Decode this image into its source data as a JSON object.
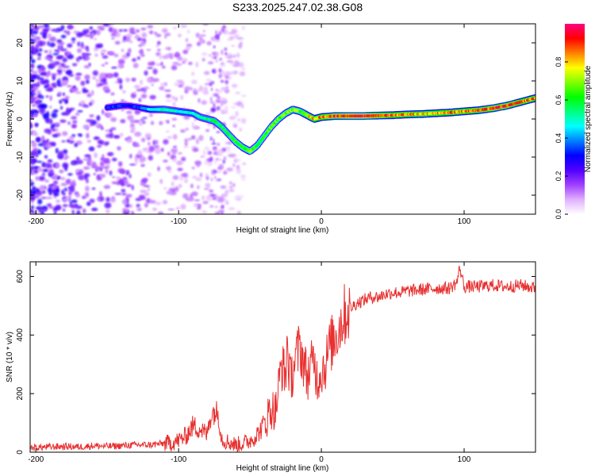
{
  "title": "S233.2025.247.02.38.G08",
  "chart_data": [
    {
      "type": "heatmap",
      "xlabel": "Height of straight line (km)",
      "ylabel": "Frequency (Hz)",
      "xlim": [
        -204,
        150
      ],
      "ylim": [
        -25,
        25
      ],
      "xticks": [
        -200,
        -100,
        0,
        100
      ],
      "yticks": [
        -20,
        -10,
        0,
        10,
        20
      ],
      "colorbar": {
        "label": "Normalized spectral amplitude",
        "range": [
          0,
          1
        ],
        "ticks": [
          0.0,
          0.2,
          0.4,
          0.6,
          0.8
        ],
        "colors": [
          "#ffffff",
          "#e0b0ff",
          "#a040ff",
          "#5000ff",
          "#0000ff",
          "#0080ff",
          "#00ffff",
          "#00ff80",
          "#00ff00",
          "#80ff00",
          "#ffff00",
          "#ff8000",
          "#ff0000",
          "#ff0080"
        ]
      },
      "ridge": {
        "height_km": [
          -150,
          -140,
          -135,
          -120,
          -110,
          -100,
          -90,
          -85,
          -80,
          -75,
          -70,
          -65,
          -60,
          -55,
          -50,
          -45,
          -40,
          -35,
          -30,
          -25,
          -20,
          -15,
          -10,
          -5,
          0,
          10,
          20,
          30,
          40,
          50,
          60,
          70,
          80,
          90,
          100,
          110,
          120,
          130,
          140,
          150
        ],
        "frequency_hz": [
          3,
          3.5,
          3.5,
          2.5,
          2.5,
          2,
          1.5,
          0.5,
          0,
          -0.5,
          -2,
          -4,
          -6,
          -7.5,
          -8.5,
          -7,
          -4.5,
          -2,
          0,
          1.5,
          2.5,
          2,
          1,
          0,
          0.5,
          0.8,
          0.8,
          0.8,
          0.9,
          1,
          1.2,
          1.3,
          1.5,
          1.7,
          2,
          2.3,
          2.8,
          3.5,
          4.5,
          5.5
        ],
        "amplitude": [
          0.35,
          0.35,
          0.3,
          0.45,
          0.55,
          0.5,
          0.5,
          0.55,
          0.55,
          0.6,
          0.6,
          0.6,
          0.65,
          0.7,
          0.7,
          0.65,
          0.65,
          0.7,
          0.7,
          0.7,
          0.75,
          0.7,
          0.8,
          0.85,
          0.9,
          0.95,
          1,
          1,
          0.95,
          0.9,
          0.9,
          0.85,
          0.85,
          0.9,
          0.9,
          0.9,
          0.95,
          0.95,
          0.9,
          0.9
        ]
      }
    },
    {
      "type": "line",
      "xlabel": "Height of straight line (km)",
      "ylabel": "SNR (10 * v/v)",
      "xlim": [
        -204,
        150
      ],
      "ylim": [
        0,
        650
      ],
      "xticks": [
        -200,
        -100,
        0,
        100
      ],
      "yticks": [
        0,
        200,
        400,
        600
      ],
      "series": [
        {
          "name": "SNR",
          "color": "#e83030",
          "x": [
            -204,
            -190,
            -180,
            -170,
            -160,
            -150,
            -140,
            -130,
            -120,
            -110,
            -105,
            -100,
            -95,
            -90,
            -85,
            -80,
            -78,
            -75,
            -72,
            -70,
            -68,
            -65,
            -60,
            -55,
            -50,
            -45,
            -42,
            -40,
            -38,
            -35,
            -32,
            -30,
            -28,
            -25,
            -24,
            -22,
            -20,
            -18,
            -15,
            -12,
            -10,
            -8,
            -5,
            -3,
            0,
            3,
            5,
            8,
            10,
            12,
            15,
            18,
            20,
            25,
            30,
            35,
            40,
            45,
            50,
            55,
            60,
            70,
            80,
            90,
            95,
            97,
            100,
            110,
            120,
            130,
            140,
            150
          ],
          "values": [
            15,
            18,
            20,
            18,
            22,
            20,
            22,
            25,
            25,
            30,
            32,
            40,
            55,
            90,
            80,
            60,
            120,
            140,
            130,
            50,
            40,
            35,
            25,
            30,
            40,
            60,
            80,
            100,
            120,
            150,
            140,
            220,
            300,
            260,
            380,
            240,
            280,
            320,
            360,
            300,
            260,
            280,
            320,
            250,
            280,
            300,
            350,
            380,
            400,
            420,
            460,
            480,
            490,
            510,
            520,
            530,
            530,
            540,
            545,
            545,
            550,
            555,
            560,
            560,
            580,
            630,
            565,
            565,
            570,
            565,
            570,
            560
          ]
        }
      ]
    }
  ]
}
